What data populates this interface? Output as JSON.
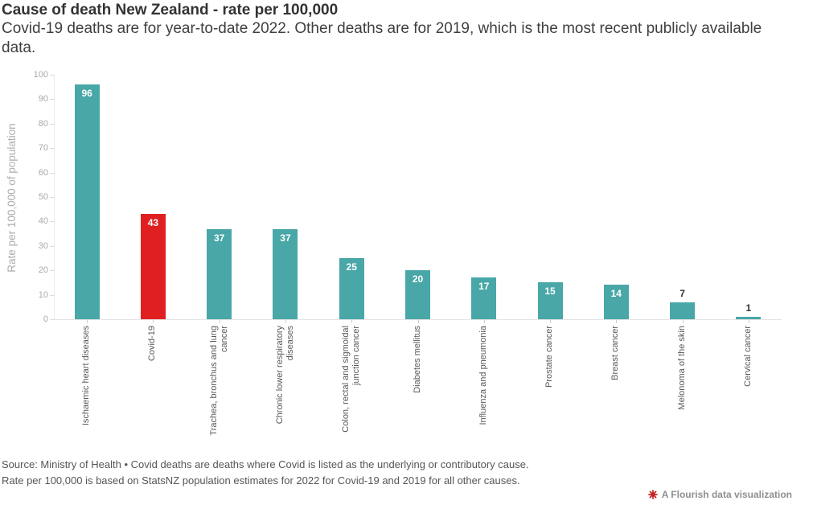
{
  "header": {
    "title": "Cause of death New Zealand - rate per 100,000",
    "subtitle": "Covid-19 deaths are for year-to-date 2022. Other deaths are for 2019, which is the most recent publicly available data."
  },
  "chart_data": {
    "type": "bar",
    "title": "Cause of death New Zealand - rate per 100,000",
    "categories": [
      "Ischaemic heart diseases",
      "Covid-19",
      "Trachea, bronchus and lung cancer",
      "Chronic lower respiratory diseases",
      "Colon, rectal and sigmoidal junction cancer",
      "Diabetes mellitus",
      "Influenza and pneumonia",
      "Prostate cancer",
      "Breast cancer",
      "Melonoma of the skin",
      "Cervical cancer"
    ],
    "values": [
      96,
      43,
      37,
      37,
      25,
      20,
      17,
      15,
      14,
      7,
      1
    ],
    "highlight_index": 1,
    "ylabel": "Rate per 100,000 of population",
    "xlabel": "",
    "ylim": [
      0,
      100
    ],
    "yticks": [
      0,
      10,
      20,
      30,
      40,
      50,
      60,
      70,
      80,
      90,
      100
    ],
    "grid": false,
    "legend": "none",
    "colors": {
      "bar": "#49a7a7",
      "highlight": "#e02020",
      "value_label_inside": "#ffffff",
      "value_label_outside": "#333333"
    }
  },
  "footer": {
    "line1": "Source: Ministry of Health • Covid deaths are deaths where Covid is listed as the underlying or contributory cause.",
    "line2": "Rate per 100,000 is based on StatsNZ population estimates for 2022 for Covid-19 and 2019 for all other causes."
  },
  "credit": {
    "label": "A Flourish data visualization",
    "icon": "flourish-starburst-icon",
    "icon_color": "#c8201f"
  }
}
